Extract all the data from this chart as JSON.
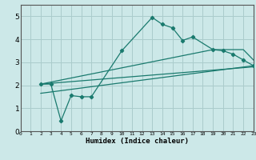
{
  "title": "",
  "xlabel": "Humidex (Indice chaleur)",
  "background_color": "#cce8e8",
  "grid_color": "#aacccc",
  "line_color": "#1a7a6e",
  "xlim": [
    0,
    23
  ],
  "ylim": [
    0,
    5.5
  ],
  "yticks": [
    0,
    1,
    2,
    3,
    4,
    5
  ],
  "xticks": [
    0,
    1,
    2,
    3,
    4,
    5,
    6,
    7,
    8,
    9,
    10,
    11,
    12,
    13,
    14,
    15,
    16,
    17,
    18,
    19,
    20,
    21,
    22,
    23
  ],
  "main_line_x": [
    2,
    3,
    4,
    5,
    6,
    7,
    10,
    13,
    14,
    15,
    16,
    17,
    19,
    20,
    21,
    22,
    23
  ],
  "main_line_y": [
    2.05,
    2.05,
    0.45,
    1.55,
    1.5,
    1.5,
    3.5,
    4.95,
    4.65,
    4.5,
    3.95,
    4.1,
    3.55,
    3.5,
    3.35,
    3.1,
    2.85
  ],
  "line2_x": [
    2,
    23
  ],
  "line2_y": [
    2.05,
    2.8
  ],
  "line3_x": [
    2,
    19,
    22,
    23
  ],
  "line3_y": [
    2.05,
    3.55,
    3.55,
    3.1
  ],
  "line4_x": [
    2,
    23
  ],
  "line4_y": [
    1.65,
    2.85
  ]
}
